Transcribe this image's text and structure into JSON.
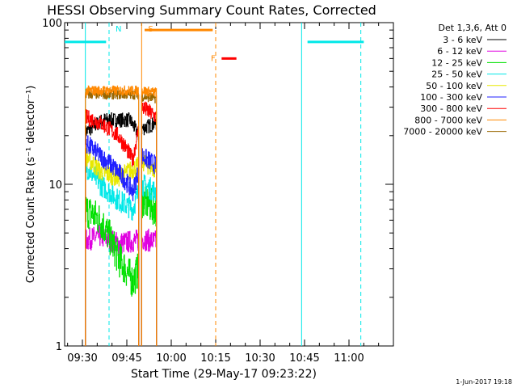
{
  "chart_data": {
    "type": "line",
    "title": "HESSI Observing Summary Count Rates, Corrected",
    "xlabel": "Start Time (29-May-17 09:23:22)",
    "ylabel": "Corrected Count Rate (s⁻¹ detector⁻¹)",
    "yscale": "log",
    "xlim_minutes": [
      -6,
      105
    ],
    "ylim": [
      1,
      100
    ],
    "x_tick_labels": [
      "09:30",
      "09:45",
      "10:00",
      "10:15",
      "10:30",
      "10:45",
      "11:00"
    ],
    "x_tick_minutes": [
      0,
      15,
      30,
      45,
      60,
      75,
      90
    ],
    "y_tick_labels": [
      "1",
      "10",
      "100"
    ],
    "y_tick_values": [
      1,
      10,
      100
    ],
    "legend_title": "Det 1,3,6, Att 0",
    "legend_position": "right",
    "series": [
      {
        "name": "3 - 6 keV",
        "color": "#000000",
        "seg1": [
          [
            1,
            21
          ],
          [
            7,
            25
          ],
          [
            16,
            25
          ],
          [
            19,
            20
          ]
        ],
        "seg2": [
          [
            20,
            22
          ],
          [
            25,
            24
          ]
        ]
      },
      {
        "name": "6 - 12 keV",
        "color": "#e000e0",
        "seg1": [
          [
            1,
            4.5
          ],
          [
            6,
            4.8
          ],
          [
            12,
            4.3
          ],
          [
            19,
            4.5
          ]
        ],
        "seg2": [
          [
            20,
            4.6
          ],
          [
            25,
            4.4
          ]
        ]
      },
      {
        "name": "12 - 25 keV",
        "color": "#00e000",
        "seg1": [
          [
            1,
            7
          ],
          [
            6,
            6
          ],
          [
            12,
            3.5
          ],
          [
            17,
            2.5
          ],
          [
            19,
            3
          ]
        ],
        "seg2": [
          [
            20,
            8
          ],
          [
            25,
            7
          ]
        ]
      },
      {
        "name": "25 - 50 keV",
        "color": "#00e8e8",
        "seg1": [
          [
            1,
            13
          ],
          [
            6,
            10
          ],
          [
            12,
            8
          ],
          [
            17,
            7
          ],
          [
            19,
            9
          ]
        ],
        "seg2": [
          [
            20,
            10
          ],
          [
            25,
            9
          ]
        ]
      },
      {
        "name": "50 - 100 keV",
        "color": "#e8e800",
        "seg1": [
          [
            1,
            15
          ],
          [
            6,
            12
          ],
          [
            12,
            11
          ],
          [
            19,
            13
          ]
        ],
        "seg2": [
          [
            20,
            14
          ],
          [
            25,
            12
          ]
        ]
      },
      {
        "name": "100 - 300 keV",
        "color": "#2020ff",
        "seg1": [
          [
            1,
            18
          ],
          [
            6,
            15
          ],
          [
            12,
            12
          ],
          [
            17,
            9
          ],
          [
            19,
            12
          ]
        ],
        "seg2": [
          [
            20,
            15
          ],
          [
            25,
            13
          ]
        ]
      },
      {
        "name": "300 - 800 keV",
        "color": "#ff0000",
        "seg1": [
          [
            1,
            26
          ],
          [
            6,
            24
          ],
          [
            12,
            20
          ],
          [
            17,
            14
          ],
          [
            19,
            22
          ]
        ],
        "seg2": [
          [
            20,
            30
          ],
          [
            25,
            26
          ]
        ]
      },
      {
        "name": "800 - 7000 keV",
        "color": "#ff8800",
        "seg1": [
          [
            1,
            38
          ],
          [
            19,
            38
          ]
        ],
        "seg2": [
          [
            20,
            38
          ],
          [
            25,
            37
          ]
        ]
      },
      {
        "name": "7000 - 20000 keV",
        "color": "#996600",
        "seg1": [
          [
            1,
            36
          ],
          [
            19,
            36
          ]
        ],
        "seg2": [
          [
            20,
            35
          ],
          [
            25,
            34
          ]
        ]
      }
    ],
    "annotations": [
      {
        "label": "N",
        "color": "#00e8e8",
        "x": 9
      },
      {
        "label": "S",
        "color": "#ff8800",
        "x": 20
      },
      {
        "label": "F",
        "color": "#ff8800",
        "x": 45
      }
    ]
  },
  "timestamp": "1-Jun-2017 19:18"
}
